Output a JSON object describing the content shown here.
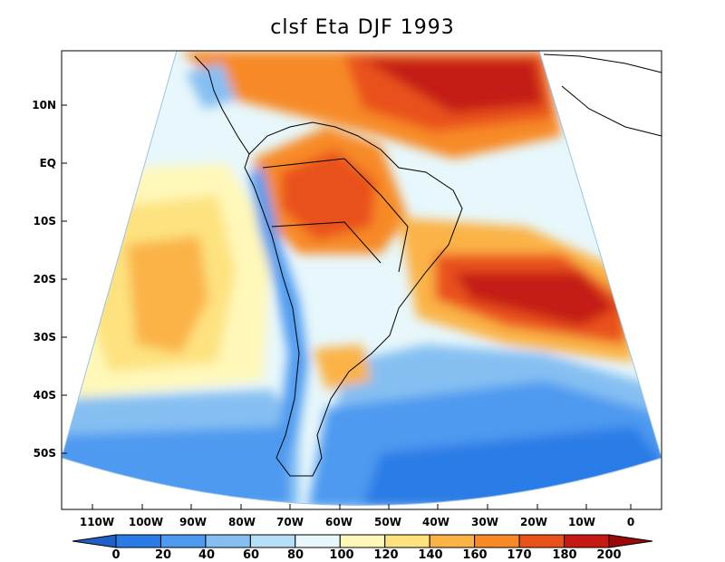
{
  "title": "clsf Eta DJF 1993",
  "y_axis_labels": [
    "10N",
    "EQ",
    "10S",
    "20S",
    "30S",
    "40S",
    "50S"
  ],
  "x_axis_labels": [
    "110W",
    "100W",
    "90W",
    "80W",
    "70W",
    "60W",
    "50W",
    "40W",
    "30W",
    "20W",
    "10W",
    "0"
  ],
  "colorbar": {
    "labels": [
      "0",
      "20",
      "40",
      "60",
      "80",
      "100",
      "120",
      "140",
      "160",
      "170",
      "180",
      "200"
    ],
    "colors": [
      "#1f5fc8",
      "#2a7be6",
      "#4d9af0",
      "#85bff2",
      "#b6def7",
      "#e7f7fb",
      "#fff8b9",
      "#fde27f",
      "#fbb346",
      "#f78a27",
      "#e9511a",
      "#c41a12",
      "#9a0a0a"
    ]
  }
}
